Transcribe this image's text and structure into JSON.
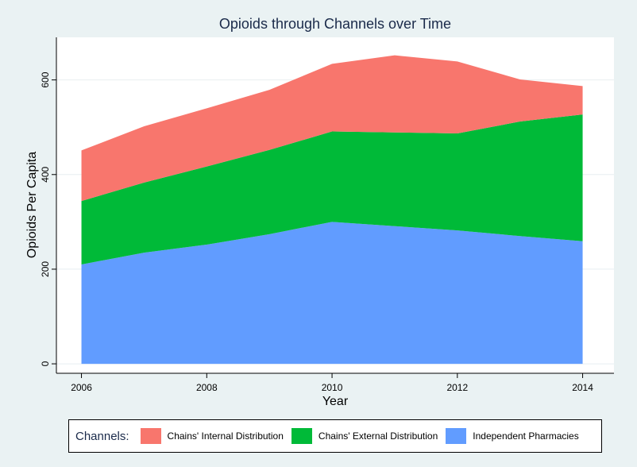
{
  "chart_data": {
    "type": "area",
    "stacked": true,
    "title": "Opioids through Channels over Time",
    "xlabel": "Year",
    "ylabel": "Opioids Per Capita",
    "x": [
      2006,
      2007,
      2008,
      2009,
      2010,
      2011,
      2012,
      2013,
      2014
    ],
    "xticks": [
      2006,
      2008,
      2010,
      2012,
      2014
    ],
    "yticks": [
      0,
      200,
      400,
      600
    ],
    "xlim": [
      2005.6,
      2014.5
    ],
    "ylim": [
      -20,
      690
    ],
    "grid": true,
    "legend_title": "Channels:",
    "legend_position": "bottom",
    "series": [
      {
        "name": "Independent Pharmacies",
        "color": "#619cff",
        "values": [
          210,
          235,
          252,
          274,
          300,
          291,
          282,
          270,
          259
        ]
      },
      {
        "name": "Chains' External Distribution",
        "color": "#00ba38",
        "values": [
          134,
          148,
          165,
          178,
          191,
          198,
          205,
          242,
          268
        ]
      },
      {
        "name": "Chains' Internal Distribution",
        "color": "#f8766d",
        "values": [
          107,
          119,
          123,
          127,
          143,
          163,
          152,
          89,
          60
        ]
      }
    ],
    "legend_order": [
      "Chains' Internal Distribution",
      "Chains' External Distribution",
      "Independent Pharmacies"
    ],
    "colors": {
      "background": "#eaf2f3",
      "plot_background": "#ffffff",
      "title": "#1a2a4a"
    }
  }
}
